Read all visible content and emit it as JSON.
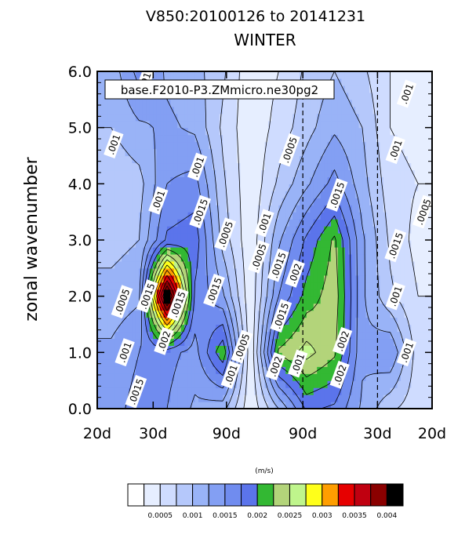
{
  "chart_data": {
    "type": "heatmap",
    "title": "V850:20100126 to 20141231",
    "subtitle": "WINTER",
    "label_box": "base.F2010-P3.ZMmicro.ne30pg2",
    "ylabel": "zonal wavenumber",
    "ylim": [
      0,
      6
    ],
    "yticks": [
      "0.0",
      "1.0",
      "2.0",
      "3.0",
      "4.0",
      "5.0",
      "6.0"
    ],
    "xticks": [
      "20d",
      "30d",
      "90d",
      "90d",
      "30d",
      "20d"
    ],
    "units": "(m/s)",
    "colorbar_ticks": [
      "0.0005",
      "0.001",
      "0.0015",
      "0.002",
      "0.0025",
      "0.003",
      "0.0035",
      "0.004"
    ],
    "colors": [
      "#ffffff",
      "#e6eeff",
      "#cfdcff",
      "#b5c8fb",
      "#99b3f7",
      "#839ff3",
      "#708cef",
      "#5b74eb",
      "#33b833",
      "#b3d47a",
      "#bff58c",
      "#ffff1a",
      "#ff9e00",
      "#e60000",
      "#c00010",
      "#8a0000",
      "#000000"
    ],
    "grid_columns": 12,
    "grid_rows": 7,
    "y": [
      0,
      1,
      2,
      3,
      4,
      5,
      6
    ],
    "values": [
      [
        0.0014,
        0.0016,
        0.0015,
        0.0012,
        0.0011,
        0.0003,
        0.001,
        0.0018,
        0.0017,
        0.0012,
        0.0008,
        0.0006
      ],
      [
        0.0013,
        0.0015,
        0.0016,
        0.0014,
        0.0022,
        0.0003,
        0.0023,
        0.0026,
        0.0023,
        0.0013,
        0.0015,
        0.0006
      ],
      [
        0.0011,
        0.0012,
        0.0045,
        0.0017,
        0.0013,
        0.0003,
        0.0015,
        0.0021,
        0.0024,
        0.0013,
        0.0008,
        0.0005
      ],
      [
        0.0009,
        0.001,
        0.0018,
        0.0019,
        0.0009,
        0.0003,
        0.0012,
        0.0018,
        0.0023,
        0.0013,
        0.0007,
        0.0004
      ],
      [
        0.0008,
        0.0009,
        0.0015,
        0.0016,
        0.0008,
        0.0003,
        0.0008,
        0.0012,
        0.0016,
        0.0011,
        0.0006,
        0.0005
      ],
      [
        0.001,
        0.0012,
        0.0013,
        0.0012,
        0.0007,
        0.0003,
        0.0006,
        0.0009,
        0.0012,
        0.001,
        0.0005,
        0.0004
      ],
      [
        0.0011,
        0.0016,
        0.0012,
        0.0011,
        0.0008,
        0.0003,
        0.0005,
        0.0008,
        0.001,
        0.0008,
        0.0005,
        0.0004
      ]
    ],
    "dashed_lines_at": [
      "90d",
      "30d"
    ],
    "contour_labels": [
      {
        "text": ".001",
        "at": [
          0.85,
          5.8
        ]
      },
      {
        "text": ".001",
        "at": [
          0.3,
          4.7
        ]
      },
      {
        "text": ".001",
        "at": [
          1.1,
          3.7
        ]
      },
      {
        "text": ".001",
        "at": [
          1.8,
          4.3
        ]
      },
      {
        "text": ".0015",
        "at": [
          1.85,
          3.5
        ]
      },
      {
        "text": ".0005",
        "at": [
          2.3,
          3.1
        ]
      },
      {
        "text": ".0005",
        "at": [
          2.9,
          2.7
        ]
      },
      {
        "text": ".0015",
        "at": [
          0.9,
          2.0
        ]
      },
      {
        "text": ".0015",
        "at": [
          1.45,
          1.85
        ]
      },
      {
        "text": ".0005",
        "at": [
          0.45,
          1.9
        ]
      },
      {
        "text": ".0015",
        "at": [
          2.1,
          2.1
        ]
      },
      {
        "text": ".001",
        "at": [
          0.5,
          1.0
        ]
      },
      {
        "text": ".002",
        "at": [
          1.2,
          1.2
        ]
      },
      {
        "text": ".0005",
        "at": [
          2.6,
          1.1
        ]
      },
      {
        "text": ".001",
        "at": [
          2.4,
          0.6
        ]
      },
      {
        "text": ".0015",
        "at": [
          0.7,
          0.3
        ]
      },
      {
        "text": ".0005",
        "at": [
          3.45,
          4.6
        ]
      },
      {
        "text": ".001",
        "at": [
          5.55,
          5.6
        ]
      },
      {
        "text": ".001",
        "at": [
          5.35,
          4.6
        ]
      },
      {
        "text": ".0015",
        "at": [
          4.3,
          3.8
        ]
      },
      {
        "text": ".001",
        "at": [
          3.0,
          3.3
        ]
      },
      {
        "text": ".0015",
        "at": [
          3.25,
          2.55
        ]
      },
      {
        "text": ".002",
        "at": [
          3.55,
          2.4
        ]
      },
      {
        "text": ".0015",
        "at": [
          3.3,
          1.65
        ]
      },
      {
        "text": ".0015",
        "at": [
          5.35,
          2.9
        ]
      },
      {
        "text": ".001",
        "at": [
          5.35,
          2.0
        ]
      },
      {
        "text": ".002",
        "at": [
          4.4,
          1.2
        ]
      },
      {
        "text": ".002",
        "at": [
          3.2,
          0.75
        ]
      },
      {
        "text": ".002",
        "at": [
          4.35,
          0.6
        ]
      },
      {
        "text": ".001",
        "at": [
          5.55,
          1.0
        ]
      },
      {
        "text": ".0005",
        "at": [
          5.85,
          3.5
        ]
      },
      {
        "text": ".001",
        "at": [
          3.6,
          0.8
        ]
      }
    ]
  }
}
